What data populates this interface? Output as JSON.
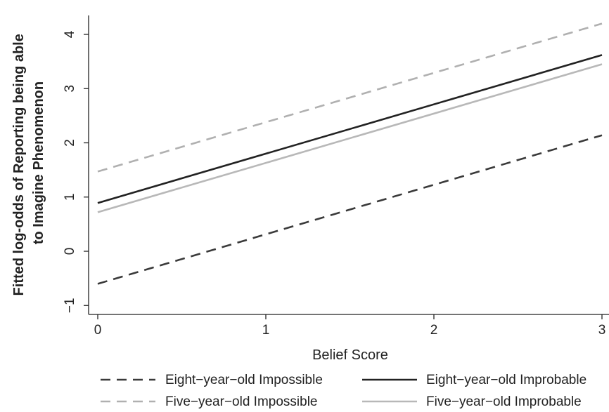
{
  "chart_data": {
    "type": "line",
    "title": "",
    "xlabel": "Belief Score",
    "ylabel_lines": [
      "Fitted log-odds of Reporting being able",
      "to Imagine Phenomenon"
    ],
    "xlim": [
      0,
      3
    ],
    "ylim": [
      -1.15,
      4.35
    ],
    "x_ticks": [
      0,
      1,
      2,
      3
    ],
    "x_tick_labels": [
      "0",
      "1",
      "2",
      "3"
    ],
    "y_ticks": [
      -1,
      0,
      1,
      2,
      3,
      4
    ],
    "y_tick_labels": [
      "−1",
      "0",
      "1",
      "2",
      "3",
      "4"
    ],
    "grid": false,
    "legend_position": "bottom",
    "series": [
      {
        "name": "Eight−year−old Impossible",
        "x": [
          0,
          3
        ],
        "y": [
          -0.6,
          2.14
        ],
        "color": "#3a3a3a",
        "dash": "dashed"
      },
      {
        "name": "Eight−year−old Improbable",
        "x": [
          0,
          3
        ],
        "y": [
          0.89,
          3.62
        ],
        "color": "#222222",
        "dash": "solid"
      },
      {
        "name": "Five−year−old Impossible",
        "x": [
          0,
          3
        ],
        "y": [
          1.47,
          4.2
        ],
        "color": "#b0b0b0",
        "dash": "dashed"
      },
      {
        "name": "Five−year−old Improbable",
        "x": [
          0,
          3
        ],
        "y": [
          0.72,
          3.45
        ],
        "color": "#b8b8b8",
        "dash": "solid"
      }
    ]
  }
}
